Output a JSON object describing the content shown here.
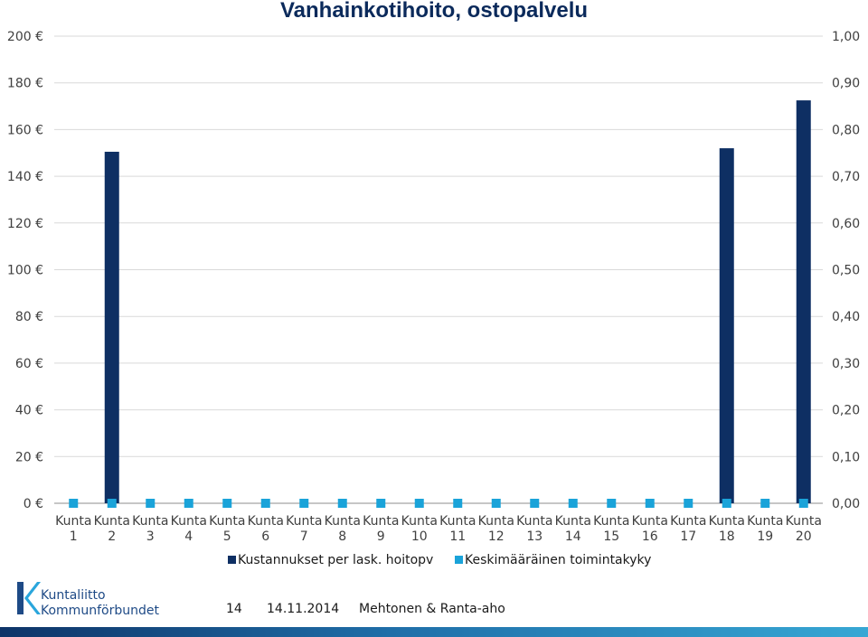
{
  "title": "Vanhainkotihoito, ostopalvelu",
  "chart_data": {
    "type": "bar",
    "categories": [
      [
        "Kunta",
        "1"
      ],
      [
        "Kunta",
        "2"
      ],
      [
        "Kunta",
        "3"
      ],
      [
        "Kunta",
        "4"
      ],
      [
        "Kunta",
        "5"
      ],
      [
        "Kunta",
        "6"
      ],
      [
        "Kunta",
        "7"
      ],
      [
        "Kunta",
        "8"
      ],
      [
        "Kunta",
        "9"
      ],
      [
        "Kunta",
        "10"
      ],
      [
        "Kunta",
        "11"
      ],
      [
        "Kunta",
        "12"
      ],
      [
        "Kunta",
        "13"
      ],
      [
        "Kunta",
        "14"
      ],
      [
        "Kunta",
        "15"
      ],
      [
        "Kunta",
        "16"
      ],
      [
        "Kunta",
        "17"
      ],
      [
        "Kunta",
        "18"
      ],
      [
        "Kunta",
        "19"
      ],
      [
        "Kunta",
        "20"
      ]
    ],
    "series": [
      {
        "name": "Kustannukset per lask. hoitopv",
        "type": "bar",
        "axis": "left",
        "color": "#0e2f63",
        "values": [
          0,
          150.5,
          0,
          0,
          0,
          0,
          0,
          0,
          0,
          0,
          0,
          0,
          0,
          0,
          0,
          0,
          0,
          152,
          0,
          172.5
        ]
      },
      {
        "name": "Keskimääräinen toimintakyky",
        "type": "marker",
        "axis": "right",
        "color": "#1aa3d9",
        "values": [
          0,
          0,
          0,
          0,
          0,
          0,
          0,
          0,
          0,
          0,
          0,
          0,
          0,
          0,
          0,
          0,
          0,
          0,
          0,
          0
        ]
      }
    ],
    "y_left": {
      "range": [
        0,
        200
      ],
      "ticks": [
        "0 €",
        "20 €",
        "40 €",
        "60 €",
        "80 €",
        "100 €",
        "120 €",
        "140 €",
        "160 €",
        "180 €",
        "200 €"
      ]
    },
    "y_right": {
      "range": [
        0,
        1
      ],
      "ticks": [
        "0,00",
        "0,10",
        "0,20",
        "0,30",
        "0,40",
        "0,50",
        "0,60",
        "0,70",
        "0,80",
        "0,90",
        "1,00"
      ]
    },
    "grid": true,
    "legend_position": "bottom"
  },
  "footer": {
    "page_number": "14",
    "date": "14.11.2014",
    "authors": "Mehtonen & Ranta-aho"
  },
  "logo": {
    "line1": "Kuntaliitto",
    "line2": "Kommunförbundet",
    "colors": [
      "#1e4a86",
      "#2aa6dc"
    ]
  }
}
